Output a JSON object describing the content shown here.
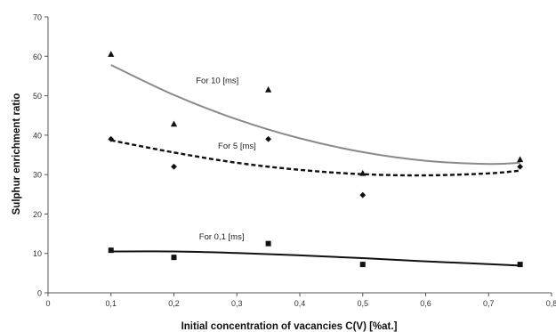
{
  "chart_data": {
    "type": "scatter",
    "xlabel": "Initial concentration of vacancies C(V) [%at.]",
    "ylabel": "Sulphur enrichment ratio",
    "xlim": [
      0,
      0.8
    ],
    "ylim": [
      0,
      70
    ],
    "x_ticks": [
      0,
      0.1,
      0.2,
      0.3,
      0.4,
      0.5,
      0.6,
      0.7,
      0.8
    ],
    "x_tick_labels": [
      "0",
      "0,1",
      "0,2",
      "0,3",
      "0,4",
      "0,5",
      "0,6",
      "0,7",
      "0,8"
    ],
    "y_ticks": [
      0,
      10,
      20,
      30,
      40,
      50,
      60,
      70
    ],
    "y_tick_labels": [
      "0",
      "10",
      "20",
      "30",
      "40",
      "50",
      "60",
      "70"
    ],
    "grid": false,
    "legend": "none",
    "series": [
      {
        "name": "For 10 [ms]",
        "marker": "triangle",
        "color": "#111111",
        "trend_color": "#8a8a8a",
        "trend_style": "solid",
        "label_at": [
          0.235,
          53.2
        ],
        "points": [
          [
            0.1,
            60.5
          ],
          [
            0.2,
            42.8
          ],
          [
            0.35,
            51.5
          ],
          [
            0.5,
            30.3
          ],
          [
            0.75,
            33.8
          ]
        ],
        "trend": [
          [
            0.1,
            57.8
          ],
          [
            0.2,
            50.2
          ],
          [
            0.3,
            44.0
          ],
          [
            0.4,
            39.2
          ],
          [
            0.5,
            35.7
          ],
          [
            0.6,
            33.5
          ],
          [
            0.7,
            32.7
          ],
          [
            0.75,
            33.0
          ]
        ]
      },
      {
        "name": "For 5 [ms]",
        "marker": "diamond",
        "color": "#111111",
        "trend_color": "#111111",
        "trend_style": "dashed",
        "label_at": [
          0.27,
          36.6
        ],
        "points": [
          [
            0.1,
            39.0
          ],
          [
            0.2,
            32.0
          ],
          [
            0.35,
            39.0
          ],
          [
            0.5,
            24.8
          ],
          [
            0.75,
            32.0
          ]
        ],
        "trend": [
          [
            0.1,
            38.7
          ],
          [
            0.2,
            35.6
          ],
          [
            0.3,
            33.0
          ],
          [
            0.4,
            31.2
          ],
          [
            0.5,
            30.1
          ],
          [
            0.6,
            29.8
          ],
          [
            0.7,
            30.3
          ],
          [
            0.75,
            31.0
          ]
        ]
      },
      {
        "name": "For 0,1 [ms]",
        "marker": "square",
        "color": "#111111",
        "trend_color": "#111111",
        "trend_style": "solid",
        "label_at": [
          0.24,
          13.5
        ],
        "points": [
          [
            0.1,
            10.8
          ],
          [
            0.2,
            9.0
          ],
          [
            0.35,
            12.5
          ],
          [
            0.5,
            7.2
          ],
          [
            0.75,
            7.2
          ]
        ],
        "trend": [
          [
            0.1,
            10.5
          ],
          [
            0.2,
            10.5
          ],
          [
            0.3,
            10.1
          ],
          [
            0.4,
            9.5
          ],
          [
            0.5,
            8.8
          ],
          [
            0.6,
            8.0
          ],
          [
            0.7,
            7.3
          ],
          [
            0.75,
            6.9
          ]
        ]
      }
    ]
  }
}
